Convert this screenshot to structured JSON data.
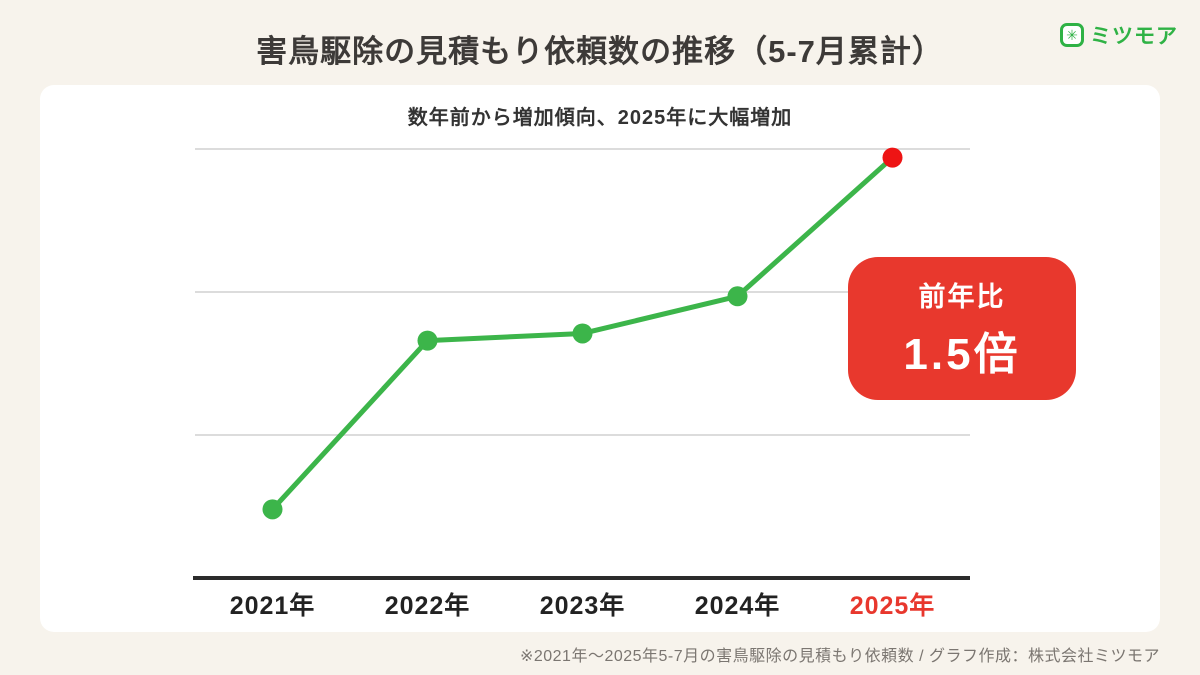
{
  "page": {
    "title": "害鳥駆除の見積もり依頼数の推移（5-7月累計）",
    "footnote": "※2021年〜2025年5-7月の害鳥駆除の見積もり依頼数 / グラフ作成：株式会社ミツモア"
  },
  "brand": {
    "name": "ミツモア",
    "icon": "mitsumoa-sparkle-icon",
    "color": "#2fb245"
  },
  "badge": {
    "label": "前年比",
    "value": "1.5倍",
    "color": "#e8382d"
  },
  "chart_data": {
    "type": "line",
    "title": "数年前から増加傾向、2025年に大幅増加",
    "categories": [
      "2021年",
      "2022年",
      "2023年",
      "2024年",
      "2025年"
    ],
    "values": [
      0.48,
      1.66,
      1.71,
      1.97,
      2.94
    ],
    "ylim": [
      0,
      3.0
    ],
    "gridline_values": [
      1,
      2,
      3
    ],
    "grid": true,
    "xlabel": "",
    "ylabel": "",
    "legend": "none",
    "line_color": "#3cb54a",
    "point_color": "#3cb54a",
    "last_point_color": "#ee1414",
    "last_label_color": "#e8372d",
    "label_color": "#222222",
    "axis_color": "#2b2b2b",
    "grid_color": "#dcdcdc",
    "annotation": "前年比1.5倍"
  }
}
